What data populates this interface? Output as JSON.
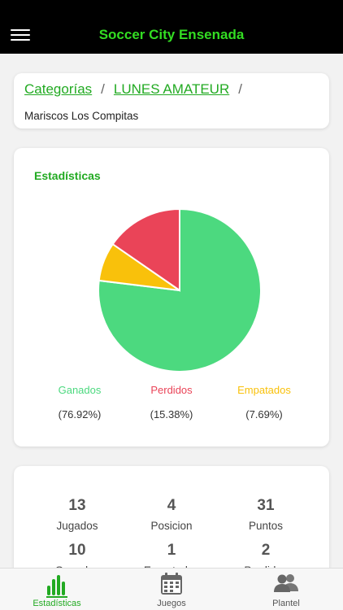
{
  "header": {
    "title": "Soccer City Ensenada",
    "menu_icon": "hamburger-menu-icon"
  },
  "breadcrumb": {
    "items": [
      "Categorías",
      "LUNES AMATEUR"
    ],
    "separator": "/",
    "team_name": "Mariscos Los Compitas"
  },
  "stats": {
    "title": "Estadísticas",
    "legend": [
      {
        "label": "Ganados",
        "percent": "(76.92%)",
        "color": "#4cd97f"
      },
      {
        "label": "Perdidos",
        "percent": "(15.38%)",
        "color": "#ea4458"
      },
      {
        "label": "Empatados",
        "percent": "(7.69%)",
        "color": "#f9c10b"
      }
    ]
  },
  "chart_data": {
    "type": "pie",
    "categories": [
      "Ganados",
      "Perdidos",
      "Empatados"
    ],
    "values": [
      76.92,
      15.38,
      7.69
    ],
    "colors": [
      "#4cd97f",
      "#ea4458",
      "#f9c10b"
    ],
    "title": "Estadísticas"
  },
  "summary": {
    "cells": [
      {
        "value": "13",
        "label": "Jugados"
      },
      {
        "value": "4",
        "label": "Posicion"
      },
      {
        "value": "31",
        "label": "Puntos"
      },
      {
        "value": "10",
        "label": "Ganados"
      },
      {
        "value": "1",
        "label": "Empatados"
      },
      {
        "value": "2",
        "label": "Perdidos"
      }
    ]
  },
  "tabs": [
    {
      "label": "Estadísticas",
      "icon": "bar-chart-icon",
      "active": true
    },
    {
      "label": "Juegos",
      "icon": "calendar-icon",
      "active": false
    },
    {
      "label": "Plantel",
      "icon": "people-icon",
      "active": false
    }
  ],
  "colors": {
    "accent": "#22aa22",
    "header_bg": "#000000",
    "title": "#33dd22"
  }
}
